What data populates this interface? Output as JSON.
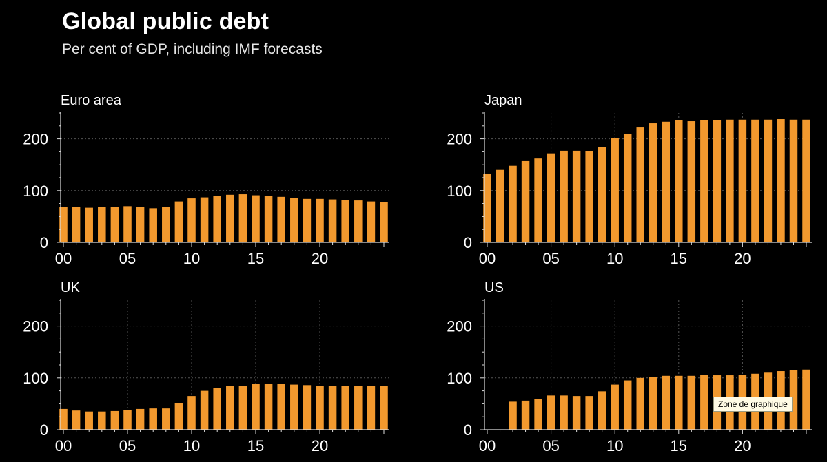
{
  "header": {
    "title": "Global public debt",
    "subtitle": "Per cent of GDP, including IMF forecasts"
  },
  "tooltip": {
    "text": "Zone de graphique"
  },
  "colors": {
    "background": "#000000",
    "bar": "#f2992e",
    "axis": "#dddddd",
    "grid": "#555555",
    "text": "#ffffff"
  },
  "chart_data": [
    {
      "type": "bar",
      "title": "Euro area",
      "x": [
        2000,
        2001,
        2002,
        2003,
        2004,
        2005,
        2006,
        2007,
        2008,
        2009,
        2010,
        2011,
        2012,
        2013,
        2014,
        2015,
        2016,
        2017,
        2018,
        2019,
        2020,
        2021,
        2022,
        2023,
        2024,
        2025
      ],
      "values": [
        69,
        68,
        67,
        68,
        69,
        70,
        68,
        66,
        69,
        79,
        85,
        87,
        90,
        92,
        93,
        91,
        90,
        88,
        86,
        84,
        84,
        83,
        82,
        81,
        79,
        78
      ],
      "ylim": [
        0,
        250
      ],
      "yticks": [
        "0",
        "100",
        "200"
      ],
      "xticks": [
        "00",
        "05",
        "10",
        "15",
        "20"
      ],
      "grid": false
    },
    {
      "type": "bar",
      "title": "Japan",
      "x": [
        2000,
        2001,
        2002,
        2003,
        2004,
        2005,
        2006,
        2007,
        2008,
        2009,
        2010,
        2011,
        2012,
        2013,
        2014,
        2015,
        2016,
        2017,
        2018,
        2019,
        2020,
        2021,
        2022,
        2023,
        2024,
        2025
      ],
      "values": [
        133,
        140,
        148,
        157,
        162,
        172,
        177,
        177,
        176,
        184,
        202,
        210,
        222,
        230,
        233,
        236,
        234,
        236,
        236,
        237,
        237,
        237,
        237,
        238,
        237,
        237
      ],
      "ylim": [
        0,
        250
      ],
      "yticks": [
        "0",
        "100",
        "200"
      ],
      "xticks": [
        "00",
        "05",
        "10",
        "15",
        "20"
      ],
      "grid": true
    },
    {
      "type": "bar",
      "title": "UK",
      "x": [
        2000,
        2001,
        2002,
        2003,
        2004,
        2005,
        2006,
        2007,
        2008,
        2009,
        2010,
        2011,
        2012,
        2013,
        2014,
        2015,
        2016,
        2017,
        2018,
        2019,
        2020,
        2021,
        2022,
        2023,
        2024,
        2025
      ],
      "values": [
        40,
        37,
        35,
        35,
        36,
        38,
        40,
        41,
        41,
        51,
        65,
        75,
        80,
        84,
        85,
        88,
        88,
        88,
        87,
        86,
        85,
        85,
        85,
        85,
        84,
        84
      ],
      "ylim": [
        0,
        250
      ],
      "yticks": [
        "0",
        "100",
        "200"
      ],
      "xticks": [
        "00",
        "05",
        "10",
        "15",
        "20"
      ],
      "grid": true
    },
    {
      "type": "bar",
      "title": "US",
      "x": [
        2000,
        2001,
        2002,
        2003,
        2004,
        2005,
        2006,
        2007,
        2008,
        2009,
        2010,
        2011,
        2012,
        2013,
        2014,
        2015,
        2016,
        2017,
        2018,
        2019,
        2020,
        2021,
        2022,
        2023,
        2024,
        2025
      ],
      "values": [
        0,
        0,
        54,
        56,
        59,
        66,
        66,
        65,
        65,
        74,
        87,
        95,
        100,
        102,
        104,
        104,
        104,
        106,
        105,
        105,
        106,
        108,
        110,
        113,
        115,
        116
      ],
      "ylim": [
        0,
        250
      ],
      "yticks": [
        "0",
        "100",
        "200"
      ],
      "xticks": [
        "00",
        "05",
        "10",
        "15",
        "20"
      ],
      "grid": true
    }
  ]
}
